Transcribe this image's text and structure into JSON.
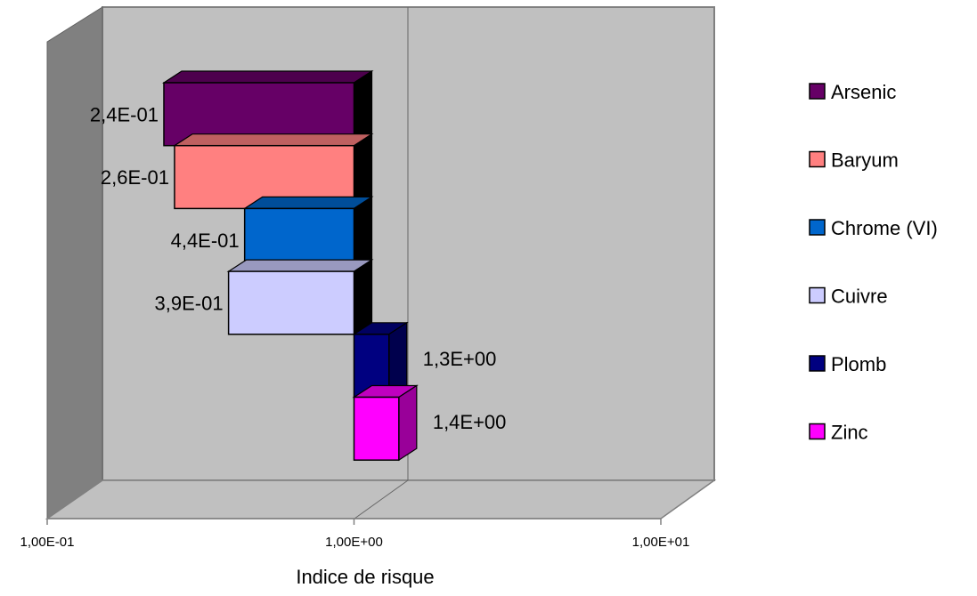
{
  "chart_data": {
    "type": "bar",
    "orientation": "horizontal",
    "style": "3d",
    "xscale": "log",
    "xlim": [
      0.1,
      10
    ],
    "xlabel": "Indice de risque",
    "title": "",
    "x_tick_labels": [
      "1,00E-01",
      "1,00E+00",
      "1,00E+01"
    ],
    "x_tick_values": [
      0.1,
      1,
      10
    ],
    "grid": false,
    "legend_position": "right",
    "series": [
      {
        "name": "Arsenic",
        "value": 0.24,
        "label": "2,4E-01",
        "color": "#660066"
      },
      {
        "name": "Baryum",
        "value": 0.26,
        "label": "2,6E-01",
        "color": "#FF8080"
      },
      {
        "name": "Chrome (VI)",
        "value": 0.44,
        "label": "4,4E-01",
        "color": "#0066CC"
      },
      {
        "name": "Cuivre",
        "value": 0.39,
        "label": "3,9E-01",
        "color": "#CCCCFF"
      },
      {
        "name": "Plomb",
        "value": 1.3,
        "label": "1,3E+00",
        "color": "#000080"
      },
      {
        "name": "Zinc",
        "value": 1.4,
        "label": "1,4E+00",
        "color": "#FF00FF"
      }
    ]
  }
}
